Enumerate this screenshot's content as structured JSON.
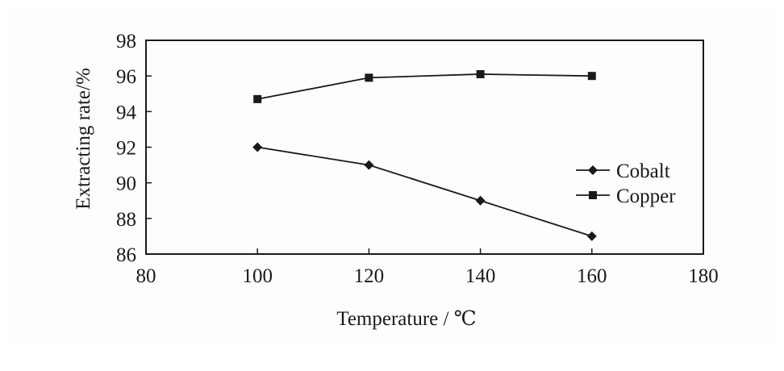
{
  "chart_data": {
    "type": "line",
    "xlabel": "Temperature / ℃",
    "ylabel": "Extracting rate/%",
    "xlim": [
      80,
      180
    ],
    "ylim": [
      86,
      98
    ],
    "x_ticks": [
      80,
      100,
      120,
      140,
      160,
      180
    ],
    "y_ticks": [
      86,
      88,
      90,
      92,
      94,
      96,
      98
    ],
    "x": [
      100,
      120,
      140,
      160
    ],
    "series": [
      {
        "name": "Cobalt",
        "marker": "diamond",
        "color": "#1a1a1a",
        "values": [
          92.0,
          91.0,
          89.0,
          87.0
        ]
      },
      {
        "name": "Copper",
        "marker": "square",
        "color": "#1a1a1a",
        "values": [
          94.7,
          95.9,
          96.1,
          96.0
        ]
      }
    ],
    "grid": false,
    "legend": "right"
  }
}
